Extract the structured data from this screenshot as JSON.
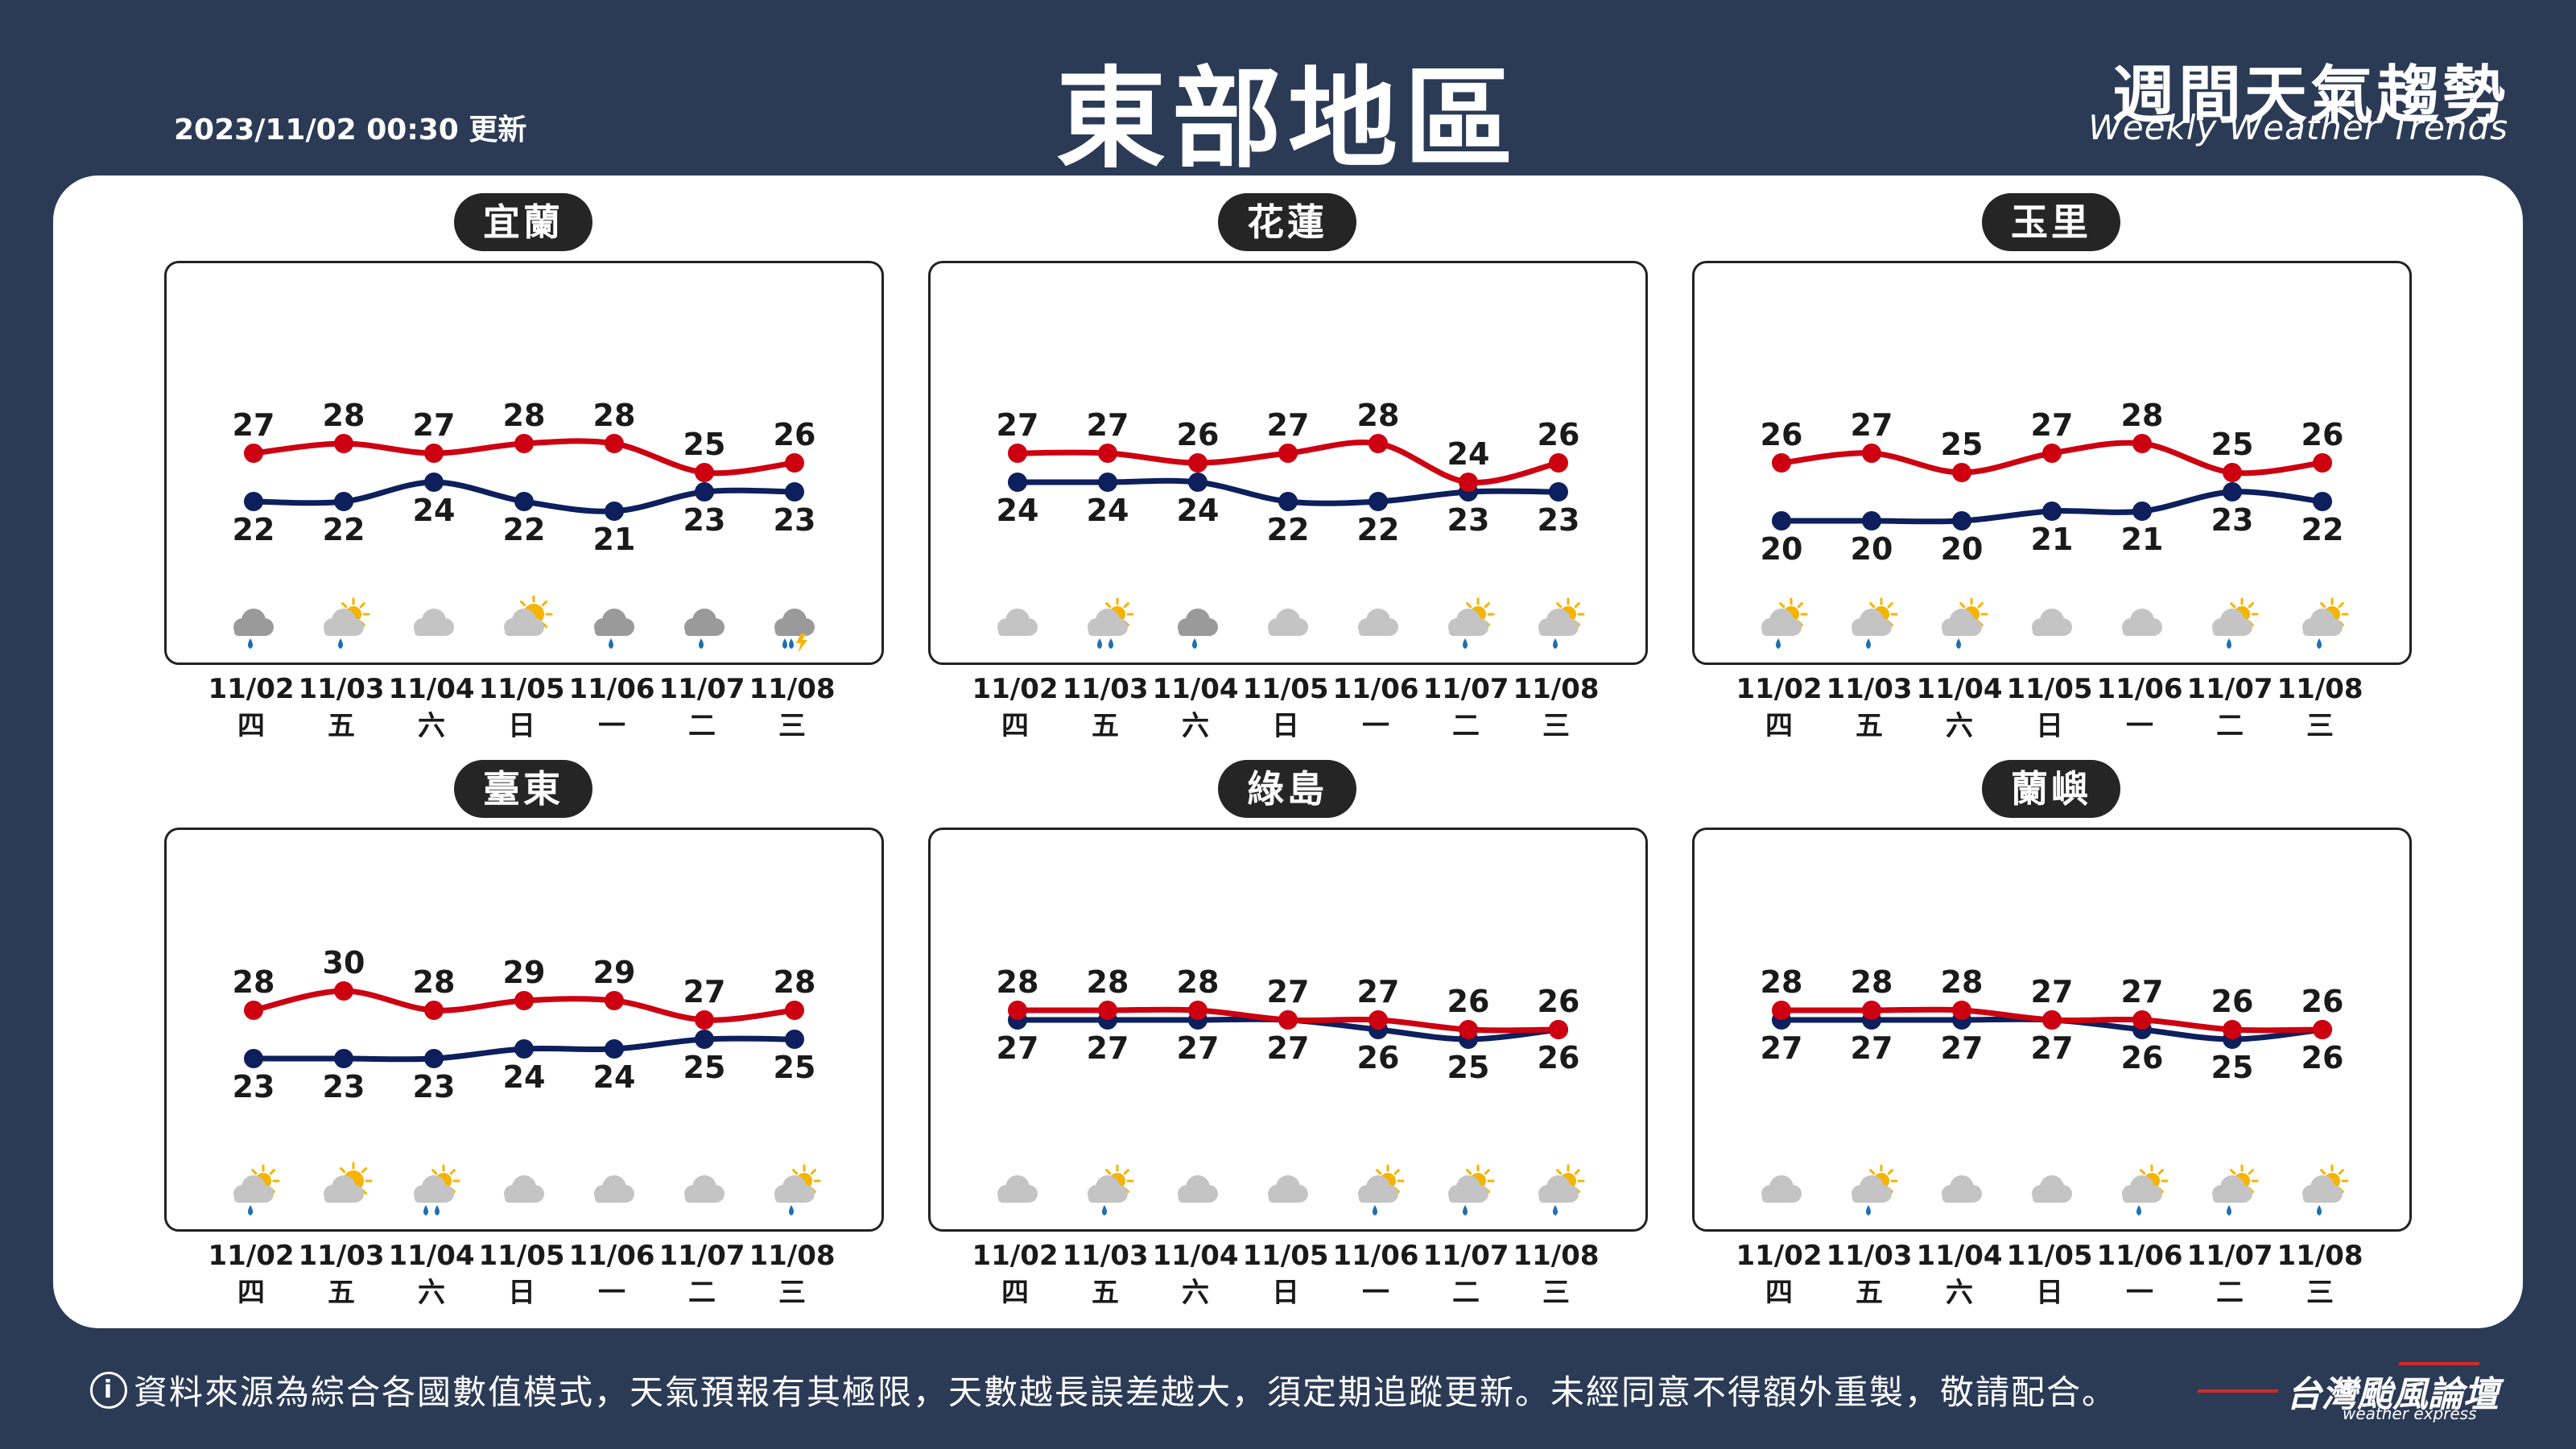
{
  "header": {
    "update_time": "2023/11/02 00:30 更新",
    "title": "東部地區",
    "brand_zh": "週間天氣趨勢",
    "brand_en": "Weekly Weather Trends"
  },
  "footer": {
    "info_icon": "info-icon",
    "notice": "資料來源為綜合各國數值模式，天氣預報有其極限，天數越長誤差越大，須定期追蹤更新。未經同意不得額外重製，敬請配合。",
    "logo_zh": "台灣颱風論壇",
    "logo_en": "weather express"
  },
  "colors": {
    "background": "#2b3a55",
    "high_line": "#cc0011",
    "low_line": "#0d1f5c",
    "label_bg": "#252525"
  },
  "dates": [
    "11/02",
    "11/03",
    "11/04",
    "11/05",
    "11/06",
    "11/07",
    "11/08"
  ],
  "weekdays": [
    "四",
    "五",
    "六",
    "日",
    "一",
    "二",
    "三"
  ],
  "chart_data": [
    {
      "type": "line",
      "title": "宜蘭",
      "categories": [
        "11/02",
        "11/03",
        "11/04",
        "11/05",
        "11/06",
        "11/07",
        "11/08"
      ],
      "series": [
        {
          "values": [
            27,
            28,
            27,
            28,
            28,
            25,
            26
          ]
        },
        {
          "values": [
            22,
            22,
            24,
            22,
            21,
            23,
            23
          ]
        }
      ],
      "weather_icons": [
        "cloud-rain",
        "partly-sunny-rain",
        "cloudy",
        "partly-sunny",
        "cloud-rain",
        "cloud-rain",
        "cloud-rain-thunder"
      ]
    },
    {
      "type": "line",
      "title": "花蓮",
      "categories": [
        "11/02",
        "11/03",
        "11/04",
        "11/05",
        "11/06",
        "11/07",
        "11/08"
      ],
      "series": [
        {
          "values": [
            27,
            27,
            26,
            27,
            28,
            24,
            26
          ]
        },
        {
          "values": [
            24,
            24,
            24,
            22,
            22,
            23,
            23
          ]
        }
      ],
      "weather_icons": [
        "cloudy",
        "partly-sunny-heavy-rain",
        "cloud-rain",
        "cloudy",
        "cloudy",
        "partly-sunny-rain",
        "partly-sunny-rain"
      ]
    },
    {
      "type": "line",
      "title": "玉里",
      "categories": [
        "11/02",
        "11/03",
        "11/04",
        "11/05",
        "11/06",
        "11/07",
        "11/08"
      ],
      "series": [
        {
          "values": [
            26,
            27,
            25,
            27,
            28,
            25,
            26
          ]
        },
        {
          "values": [
            20,
            20,
            20,
            21,
            21,
            23,
            22
          ]
        }
      ],
      "weather_icons": [
        "partly-sunny-rain",
        "partly-sunny-rain",
        "partly-sunny-rain",
        "cloudy",
        "cloudy",
        "partly-sunny-rain",
        "partly-sunny-rain"
      ]
    },
    {
      "type": "line",
      "title": "臺東",
      "categories": [
        "11/02",
        "11/03",
        "11/04",
        "11/05",
        "11/06",
        "11/07",
        "11/08"
      ],
      "series": [
        {
          "values": [
            28,
            30,
            28,
            29,
            29,
            27,
            28
          ]
        },
        {
          "values": [
            23,
            23,
            23,
            24,
            24,
            25,
            25
          ]
        }
      ],
      "weather_icons": [
        "partly-sunny-rain",
        "partly-sunny",
        "partly-sunny-heavy-rain",
        "cloudy",
        "cloudy",
        "cloudy",
        "partly-sunny-rain"
      ]
    },
    {
      "type": "line",
      "title": "綠島",
      "categories": [
        "11/02",
        "11/03",
        "11/04",
        "11/05",
        "11/06",
        "11/07",
        "11/08"
      ],
      "series": [
        {
          "values": [
            28,
            28,
            28,
            27,
            27,
            26,
            26
          ]
        },
        {
          "values": [
            27,
            27,
            27,
            27,
            26,
            25,
            26
          ]
        }
      ],
      "weather_icons": [
        "cloudy",
        "partly-sunny-rain",
        "cloudy",
        "cloudy",
        "partly-sunny-rain",
        "partly-sunny-rain",
        "partly-sunny-rain"
      ]
    },
    {
      "type": "line",
      "title": "蘭嶼",
      "categories": [
        "11/02",
        "11/03",
        "11/04",
        "11/05",
        "11/06",
        "11/07",
        "11/08"
      ],
      "series": [
        {
          "values": [
            28,
            28,
            28,
            27,
            27,
            26,
            26
          ]
        },
        {
          "values": [
            27,
            27,
            27,
            27,
            26,
            25,
            26
          ]
        }
      ],
      "weather_icons": [
        "cloudy",
        "partly-sunny-rain",
        "cloudy",
        "cloudy",
        "partly-sunny-rain",
        "partly-sunny-rain",
        "partly-sunny-rain"
      ]
    }
  ]
}
